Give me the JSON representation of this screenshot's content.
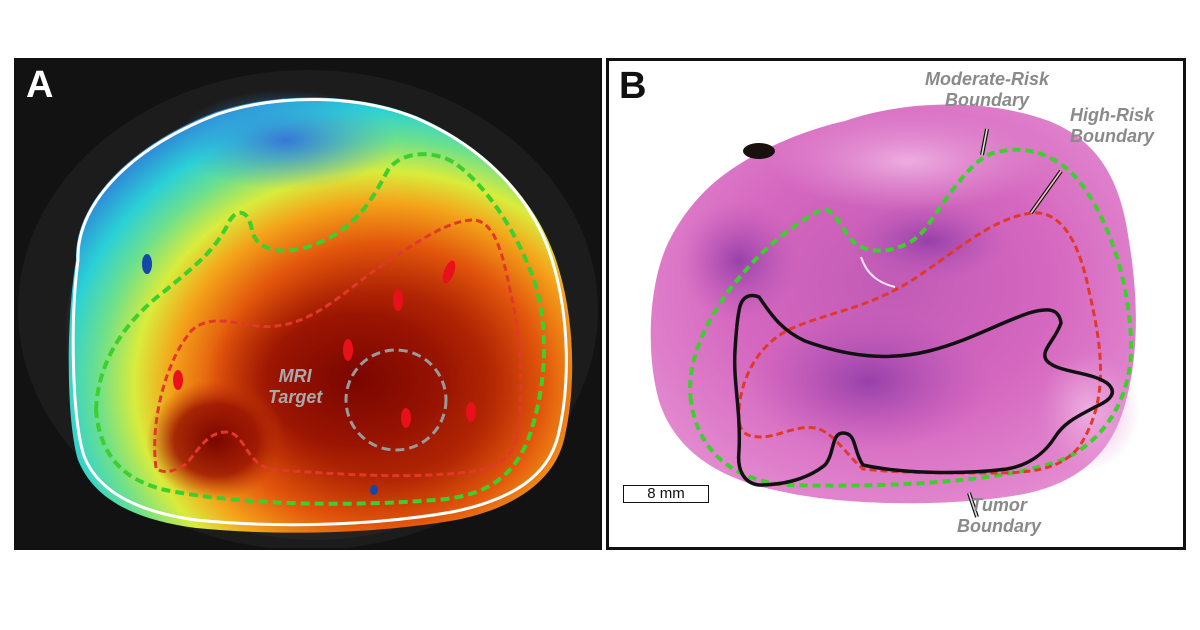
{
  "panels": {
    "a": {
      "letter": "A",
      "target_label_line1": "MRI",
      "target_label_line2": "Target"
    },
    "b": {
      "letter": "B",
      "moderate_label_line1": "Moderate-Risk",
      "moderate_label_line2": "Boundary",
      "high_label_line1": "High-Risk",
      "high_label_line2": "Boundary",
      "tumor_label_line1": "Tumor",
      "tumor_label_line2": "Boundary",
      "scale_bar": "8 mm"
    }
  },
  "colors": {
    "moderate_risk": "#3ccf2e",
    "high_risk": "#e0392a",
    "tumor": "#111111",
    "tissue_stain": "#d65fb8",
    "heatmap_low": "#2f7fd8",
    "heatmap_high": "#7a0a00"
  }
}
